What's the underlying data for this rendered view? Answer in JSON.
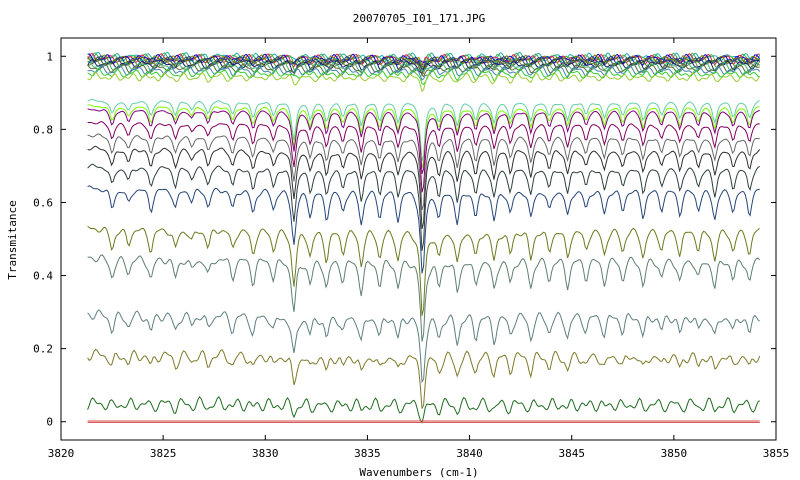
{
  "chart_data": {
    "type": "line",
    "title": "20070705_I01_171.JPG",
    "xlabel": "Wavenumbers (cm-1)",
    "ylabel": "Transmitance",
    "xlim": [
      3820,
      3855
    ],
    "ylim": [
      -0.05,
      1.05
    ],
    "x_range": [
      3821.3,
      3854.2
    ],
    "xticks": [
      "3820",
      "3825",
      "3830",
      "3835",
      "3840",
      "3845",
      "3850",
      "3855"
    ],
    "yticks": [
      "0",
      "0.2",
      "0.4",
      "0.6",
      "0.8",
      "1"
    ],
    "grid": false,
    "legend": "none",
    "absorption_lines_cm1": [
      {
        "x": 3822.5,
        "depth": 0.2
      },
      {
        "x": 3823.3,
        "depth": 0.15
      },
      {
        "x": 3824.4,
        "depth": 0.22
      },
      {
        "x": 3825.6,
        "depth": 0.2
      },
      {
        "x": 3826.4,
        "depth": 0.12
      },
      {
        "x": 3827.2,
        "depth": 0.18
      },
      {
        "x": 3828.4,
        "depth": 0.2
      },
      {
        "x": 3829.4,
        "depth": 0.25
      },
      {
        "x": 3830.4,
        "depth": 0.2
      },
      {
        "x": 3831.4,
        "depth": 0.55
      },
      {
        "x": 3832.2,
        "depth": 0.25
      },
      {
        "x": 3833.0,
        "depth": 0.3
      },
      {
        "x": 3833.8,
        "depth": 0.22
      },
      {
        "x": 3834.7,
        "depth": 0.35
      },
      {
        "x": 3835.6,
        "depth": 0.28
      },
      {
        "x": 3836.5,
        "depth": 0.3
      },
      {
        "x": 3837.7,
        "depth": 0.9
      },
      {
        "x": 3838.5,
        "depth": 0.28
      },
      {
        "x": 3839.4,
        "depth": 0.35
      },
      {
        "x": 3840.3,
        "depth": 0.28
      },
      {
        "x": 3841.2,
        "depth": 0.32
      },
      {
        "x": 3842.0,
        "depth": 0.25
      },
      {
        "x": 3843.0,
        "depth": 0.3
      },
      {
        "x": 3843.9,
        "depth": 0.22
      },
      {
        "x": 3844.8,
        "depth": 0.28
      },
      {
        "x": 3845.7,
        "depth": 0.2
      },
      {
        "x": 3846.6,
        "depth": 0.25
      },
      {
        "x": 3847.5,
        "depth": 0.22
      },
      {
        "x": 3848.5,
        "depth": 0.28
      },
      {
        "x": 3849.4,
        "depth": 0.2
      },
      {
        "x": 3850.3,
        "depth": 0.25
      },
      {
        "x": 3851.2,
        "depth": 0.2
      },
      {
        "x": 3852.0,
        "depth": 0.3
      },
      {
        "x": 3852.9,
        "depth": 0.22
      },
      {
        "x": 3853.7,
        "depth": 0.25
      }
    ],
    "series": [
      {
        "baseline": 1.0,
        "color": "#20b2aa"
      },
      {
        "baseline": 0.998,
        "color": "#3cb44b"
      },
      {
        "baseline": 0.996,
        "color": "#e6194b"
      },
      {
        "baseline": 0.995,
        "color": "#0000cd"
      },
      {
        "baseline": 0.993,
        "color": "#808000"
      },
      {
        "baseline": 0.99,
        "color": "#1e3a8a"
      },
      {
        "baseline": 0.987,
        "color": "#2f4f4f"
      },
      {
        "baseline": 0.983,
        "color": "#6b8e23"
      },
      {
        "baseline": 0.98,
        "color": "#191970"
      },
      {
        "baseline": 0.975,
        "color": "#3cb371"
      },
      {
        "baseline": 0.97,
        "color": "#556b2f"
      },
      {
        "baseline": 0.963,
        "color": "#4682b4"
      },
      {
        "baseline": 0.955,
        "color": "#32cd32"
      },
      {
        "baseline": 0.945,
        "color": "#9acd32"
      },
      {
        "baseline": 0.88,
        "color": "#66cdaa"
      },
      {
        "baseline": 0.865,
        "color": "#7cfc00"
      },
      {
        "baseline": 0.855,
        "color": "#800080"
      },
      {
        "baseline": 0.82,
        "color": "#800060"
      },
      {
        "baseline": 0.785,
        "color": "#696969"
      },
      {
        "baseline": 0.75,
        "color": "#2f2f2f"
      },
      {
        "baseline": 0.7,
        "color": "#2f3f3f"
      },
      {
        "baseline": 0.64,
        "color": "#24457a"
      },
      {
        "baseline": 0.53,
        "color": "#6b7a1f"
      },
      {
        "baseline": 0.45,
        "color": "#5f7f6f"
      },
      {
        "baseline": 0.295,
        "color": "#5f7f80"
      },
      {
        "baseline": 0.185,
        "color": "#7f7a2a"
      },
      {
        "baseline": 0.05,
        "color": "#1f6b1f"
      },
      {
        "baseline": 0.002,
        "color": "#e04040"
      },
      {
        "baseline": -0.002,
        "color": "#cd5c5c"
      }
    ]
  }
}
